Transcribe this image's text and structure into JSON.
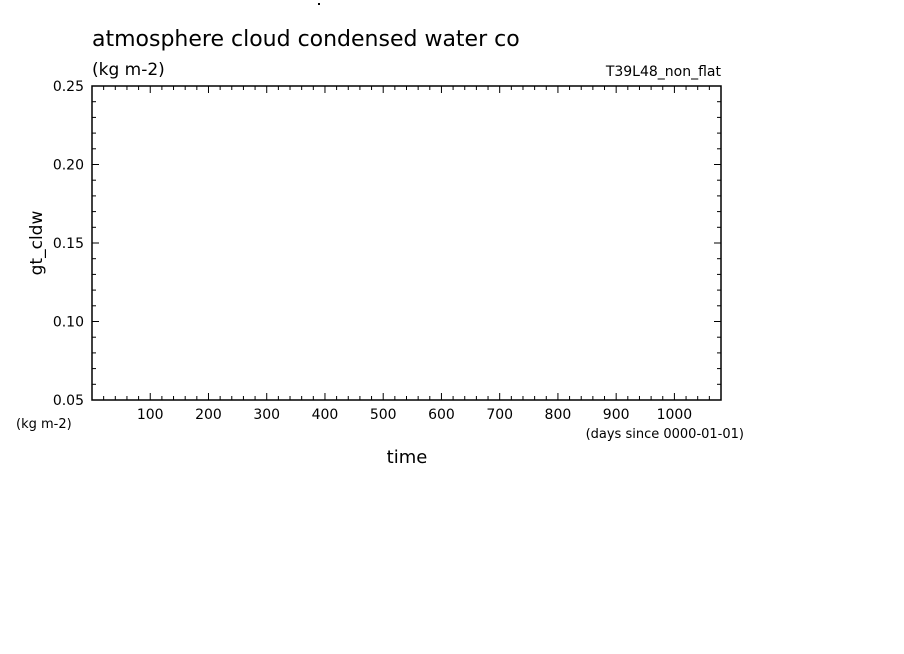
{
  "chart_data": {
    "type": "line",
    "title": "atmosphere cloud condensed water co",
    "units": "(kg m-2)",
    "run_label": "T39L48_non_flat",
    "xlabel": "time",
    "x_units": "(days since 0000-01-01)",
    "ylabel": "gt_cldw",
    "y_units": "(kg m-2)",
    "xlim": [
      0,
      1080
    ],
    "ylim": [
      0.05,
      0.25
    ],
    "x_ticks": [
      100,
      200,
      300,
      400,
      500,
      600,
      700,
      800,
      900,
      1000
    ],
    "x_tick_labels": [
      "100",
      "200",
      "300",
      "400",
      "500",
      "600",
      "700",
      "800",
      "900",
      "1000"
    ],
    "y_ticks": [
      0.05,
      0.1,
      0.15,
      0.2,
      0.25
    ],
    "y_tick_labels": [
      "0.05",
      "0.10",
      "0.15",
      "0.20",
      "0.25"
    ],
    "series": [],
    "grid": false
  }
}
